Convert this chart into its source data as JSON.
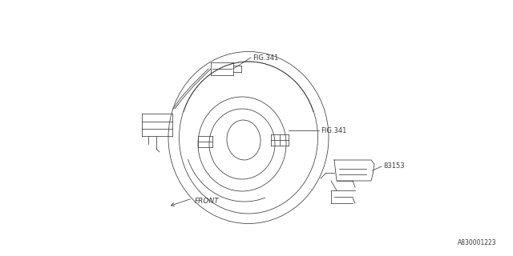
{
  "background_color": "#ffffff",
  "line_color": "#3a3a3a",
  "text_color": "#3a3a3a",
  "fig341_label1": "FIG.341",
  "fig341_label2": "FIG.341",
  "part_label": "83153",
  "front_label": "FRONT",
  "diagram_id": "A830001223",
  "lw": 0.55,
  "fontsize_label": 6.0,
  "fontsize_id": 5.5
}
